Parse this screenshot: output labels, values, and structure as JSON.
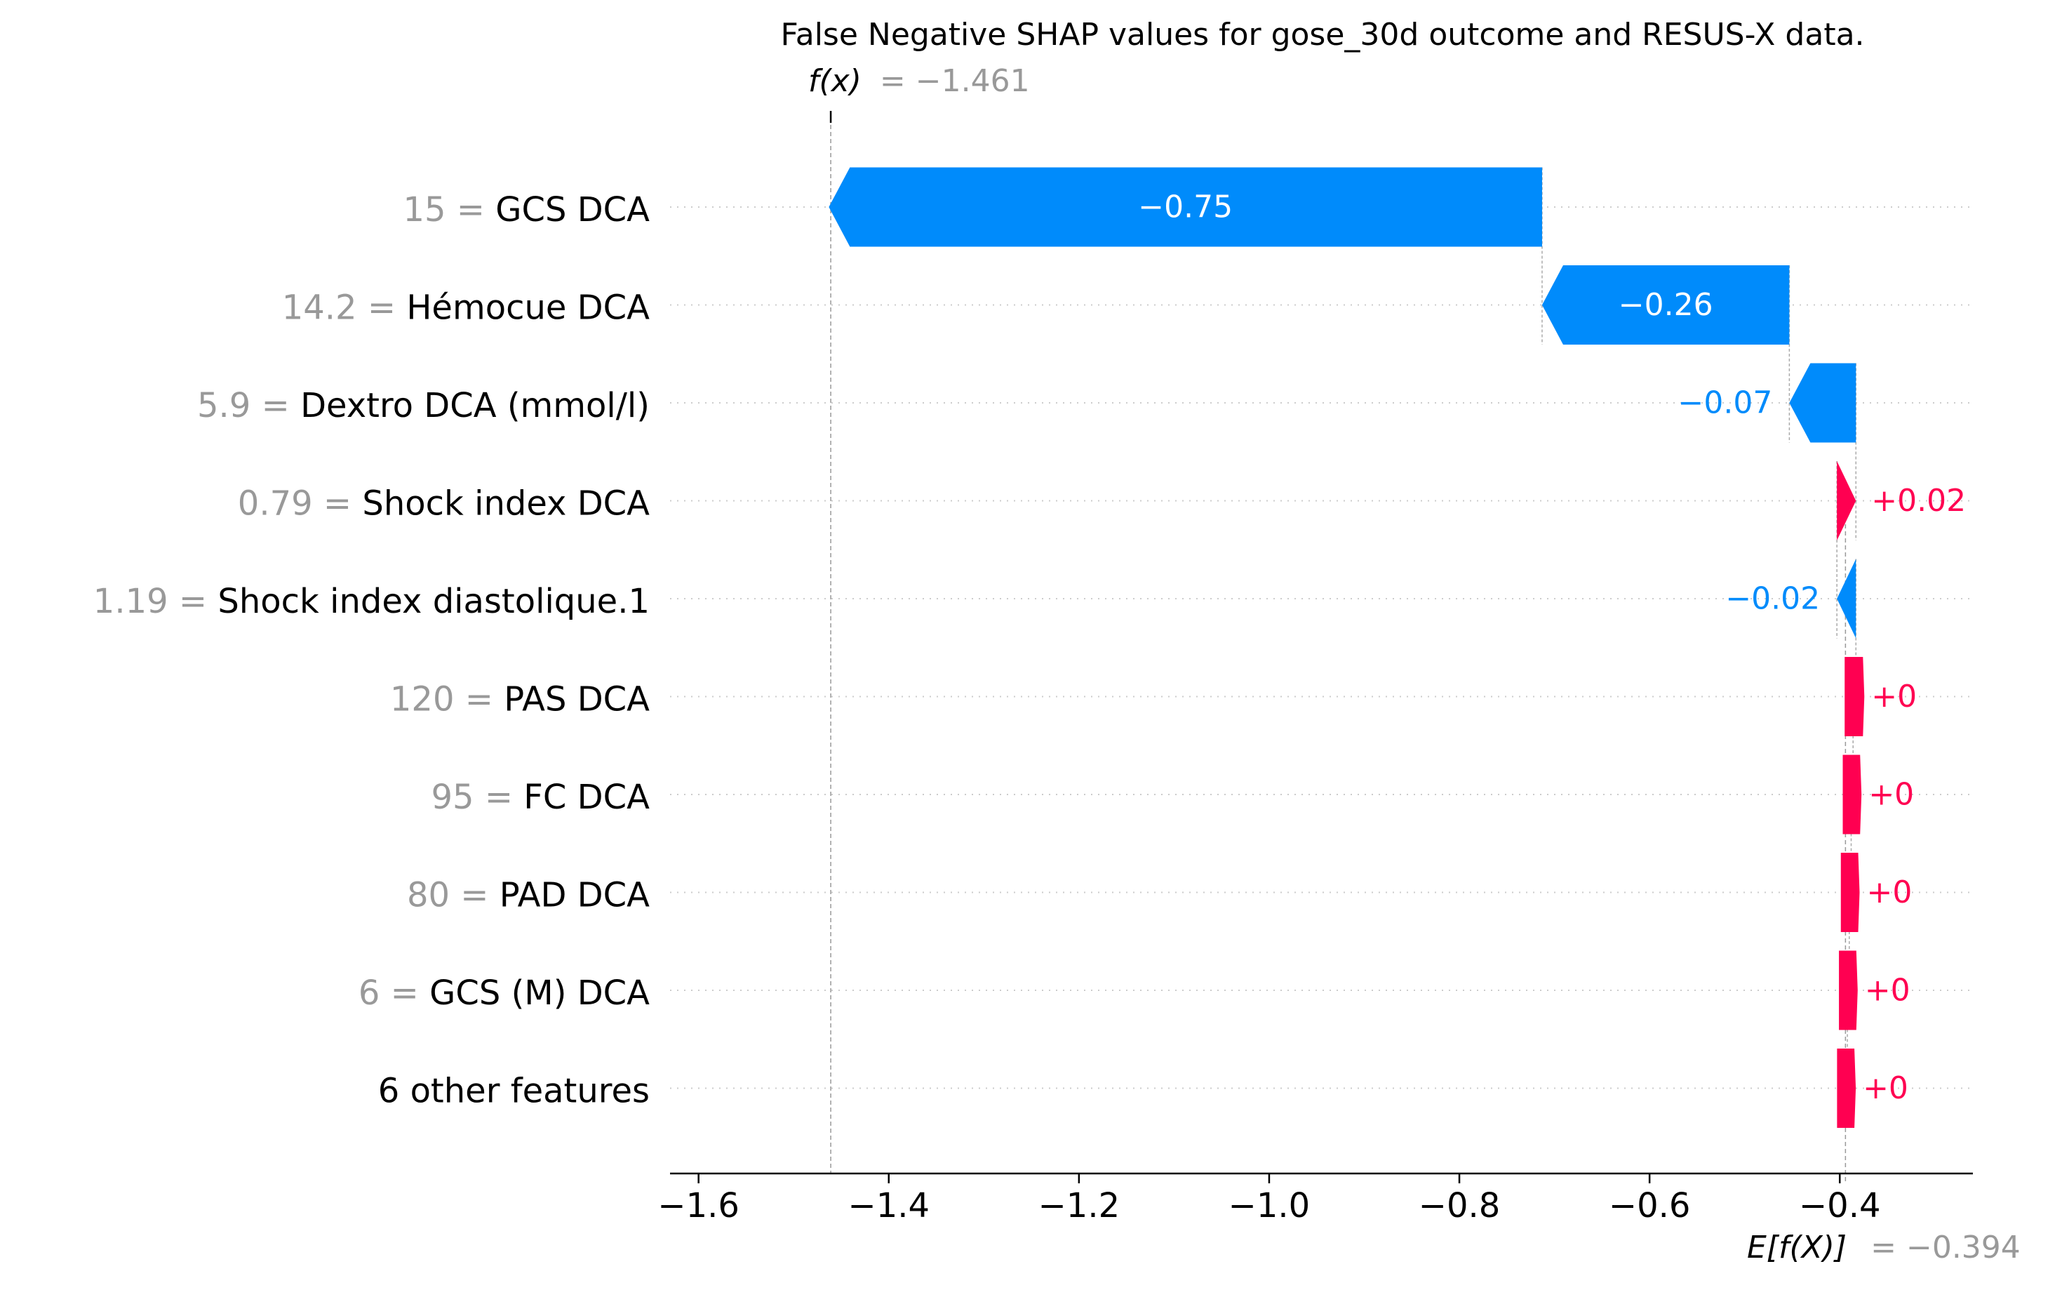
{
  "chart_data": {
    "type": "waterfall",
    "title": "False Negative SHAP values for gose_30d outcome and RESUS-X data.",
    "fx_label": "f(x)",
    "fx_value_text": "= −1.461",
    "fx_value": -1.461,
    "ex_label": "E[f(X)]",
    "ex_value_text": "= −0.394",
    "ex_value": -0.394,
    "xlim": [
      -1.63,
      -0.26
    ],
    "x_ticks": [
      -1.6,
      -1.4,
      -1.2,
      -1.0,
      -0.8,
      -0.6,
      -0.4
    ],
    "x_tick_labels": [
      "−1.6",
      "−1.4",
      "−1.2",
      "−1.0",
      "−0.8",
      "−0.6",
      "−0.4"
    ],
    "colors": {
      "negative": "#008bfb",
      "positive": "#ff0051",
      "value_gray": "#999999",
      "text": "#000000"
    },
    "features": [
      {
        "value": "15",
        "name": "GCS DCA",
        "shap": -0.75,
        "label": "−0.75"
      },
      {
        "value": "14.2",
        "name": "Hémocue DCA",
        "shap": -0.26,
        "label": "−0.26"
      },
      {
        "value": "5.9",
        "name": "Dextro DCA (mmol/l)",
        "shap": -0.07,
        "label": "−0.07"
      },
      {
        "value": "0.79",
        "name": "Shock index DCA",
        "shap": 0.02,
        "label": "+0.02"
      },
      {
        "value": "1.19",
        "name": "Shock index diastolique.1",
        "shap": -0.02,
        "label": "−0.02"
      },
      {
        "value": "120",
        "name": "PAS DCA",
        "shap": 0.003,
        "label": "+0"
      },
      {
        "value": "95",
        "name": "FC  DCA",
        "shap": 0.002,
        "label": "+0"
      },
      {
        "value": "80",
        "name": "PAD DCA",
        "shap": 0.002,
        "label": "+0"
      },
      {
        "value": "6",
        "name": "GCS (M) DCA",
        "shap": 0.002,
        "label": "+0"
      },
      {
        "value": "",
        "name": "6 other features",
        "shap": 0.002,
        "label": "+0"
      }
    ]
  }
}
